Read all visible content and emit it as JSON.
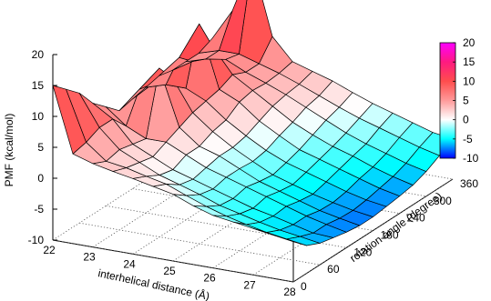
{
  "chart_data": {
    "type": "surface3d",
    "title": "",
    "xlabel": "interhelical distance (Å)",
    "ylabel": "rotation angle (degree)",
    "zlabel": "PMF (kcal/mol)",
    "x_ticks": [
      "22",
      "23",
      "24",
      "25",
      "26",
      "27",
      "28"
    ],
    "y_ticks": [
      "0",
      "60",
      "120",
      "180",
      "240",
      "300",
      "360"
    ],
    "z_ticks": [
      "-10",
      "-5",
      "0",
      "5",
      "10",
      "15",
      "20"
    ],
    "colorbar_ticks": [
      "-10",
      "-5",
      "0",
      "5",
      "10",
      "15",
      "20"
    ],
    "xlim": [
      22,
      28
    ],
    "ylim": [
      0,
      360
    ],
    "zlim": [
      -10,
      20
    ],
    "colorscale": {
      "stops": [
        {
          "value": -10,
          "color": "#0000ff"
        },
        {
          "value": -5,
          "color": "#00ffff"
        },
        {
          "value": 0,
          "color": "#ffffff"
        },
        {
          "value": 5,
          "color": "#ff9a9a"
        },
        {
          "value": 10,
          "color": "#ff4d4d"
        },
        {
          "value": 15,
          "color": "#ff1a80"
        },
        {
          "value": 20,
          "color": "#ff00ff"
        }
      ]
    },
    "x": [
      22,
      22.5,
      23,
      23.5,
      24,
      24.5,
      25,
      25.5,
      26,
      26.5,
      27,
      27.5,
      28
    ],
    "y": [
      0,
      30,
      60,
      90,
      120,
      150,
      180,
      210,
      240,
      270,
      300,
      330,
      360
    ],
    "z": [
      [
        15.0,
        4.5,
        3.5,
        2.8,
        2.2,
        1.5,
        0.8,
        -0.5,
        -1.5,
        -2.0,
        -2.5,
        -3.0,
        -3.5
      ],
      [
        13.0,
        5.0,
        2.5,
        2.0,
        1.2,
        0.5,
        -0.8,
        -2.0,
        -3.0,
        -3.8,
        -4.5,
        -5.0,
        -5.5
      ],
      [
        11.0,
        6.0,
        3.0,
        1.5,
        0.0,
        -1.0,
        -2.0,
        -3.2,
        -4.0,
        -4.8,
        -5.5,
        -6.0,
        -6.5
      ],
      [
        8.0,
        6.0,
        2.5,
        1.0,
        -0.5,
        -1.5,
        -2.5,
        -3.5,
        -4.5,
        -5.2,
        -6.0,
        -6.8,
        -7.0
      ],
      [
        6.0,
        3.5,
        2.0,
        2.0,
        0.5,
        -1.0,
        -2.0,
        -3.0,
        -4.0,
        -5.0,
        -6.0,
        -6.8,
        -7.5
      ],
      [
        4.0,
        8.0,
        12.0,
        3.0,
        0.5,
        -0.5,
        -2.0,
        -3.5,
        -4.5,
        -5.5,
        -6.5,
        -7.2,
        -7.8
      ],
      [
        4.5,
        7.5,
        9.0,
        4.0,
        1.5,
        -0.5,
        -2.2,
        -3.8,
        -4.8,
        -5.8,
        -6.6,
        -7.3,
        -7.8
      ],
      [
        5.0,
        6.0,
        6.0,
        4.5,
        2.0,
        0.0,
        -1.8,
        -3.2,
        -4.2,
        -5.2,
        -6.2,
        -7.0,
        -7.5
      ],
      [
        5.5,
        9.0,
        15.0,
        5.0,
        3.5,
        1.0,
        -0.8,
        -2.5,
        -3.5,
        -4.5,
        -5.5,
        -6.5,
        -7.2
      ],
      [
        5.0,
        7.0,
        10.0,
        6.0,
        4.0,
        2.0,
        0.0,
        -1.5,
        -2.8,
        -3.8,
        -5.0,
        -6.0,
        -6.8
      ],
      [
        5.0,
        6.0,
        6.5,
        5.0,
        3.8,
        2.5,
        1.0,
        -0.5,
        -2.0,
        -3.2,
        -4.2,
        -5.2,
        -6.0
      ],
      [
        5.0,
        6.0,
        6.0,
        5.0,
        4.0,
        2.8,
        1.5,
        0.2,
        -1.0,
        -2.0,
        -3.0,
        -4.0,
        -4.8
      ],
      [
        6.0,
        11.0,
        19.5,
        8.0,
        4.5,
        3.5,
        2.5,
        1.2,
        0.0,
        -1.0,
        -2.0,
        -3.0,
        -3.5
      ]
    ]
  }
}
